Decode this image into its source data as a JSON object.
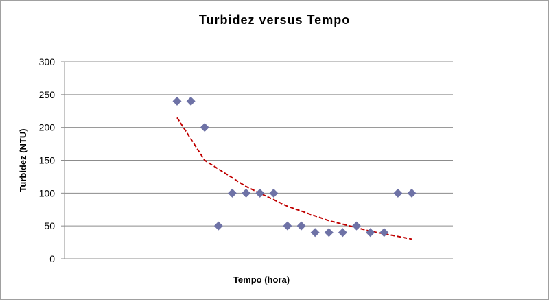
{
  "chart_data": {
    "type": "scatter",
    "title": "Turbidez versus Tempo",
    "xlabel": "Tempo (hora)",
    "ylabel": "Turbidez (NTU)",
    "ylim": [
      0,
      300
    ],
    "yticks": [
      0,
      50,
      100,
      150,
      200,
      250,
      300
    ],
    "grid": true,
    "legend": "none",
    "x_tick_labels_shown": false,
    "series": [
      {
        "marker": "diamond",
        "color": "#6e72a6",
        "points": [
          {
            "x": 1,
            "y": 240
          },
          {
            "x": 2,
            "y": 240
          },
          {
            "x": 3,
            "y": 200
          },
          {
            "x": 4,
            "y": 50
          },
          {
            "x": 5,
            "y": 100
          },
          {
            "x": 6,
            "y": 100
          },
          {
            "x": 7,
            "y": 100
          },
          {
            "x": 8,
            "y": 100
          },
          {
            "x": 9,
            "y": 50
          },
          {
            "x": 10,
            "y": 50
          },
          {
            "x": 11,
            "y": 40
          },
          {
            "x": 12,
            "y": 40
          },
          {
            "x": 13,
            "y": 40
          },
          {
            "x": 14,
            "y": 50
          },
          {
            "x": 15,
            "y": 40
          },
          {
            "x": 16,
            "y": 40
          },
          {
            "x": 17,
            "y": 100
          },
          {
            "x": 18,
            "y": 100
          }
        ]
      }
    ],
    "trendline": {
      "type": "exponential",
      "style": "dashed",
      "color": "#c00000",
      "points": [
        {
          "x": 1,
          "y": 215
        },
        {
          "x": 3,
          "y": 150
        },
        {
          "x": 6,
          "y": 110
        },
        {
          "x": 9,
          "y": 80
        },
        {
          "x": 12,
          "y": 58
        },
        {
          "x": 15,
          "y": 42
        },
        {
          "x": 18,
          "y": 30
        }
      ]
    }
  }
}
